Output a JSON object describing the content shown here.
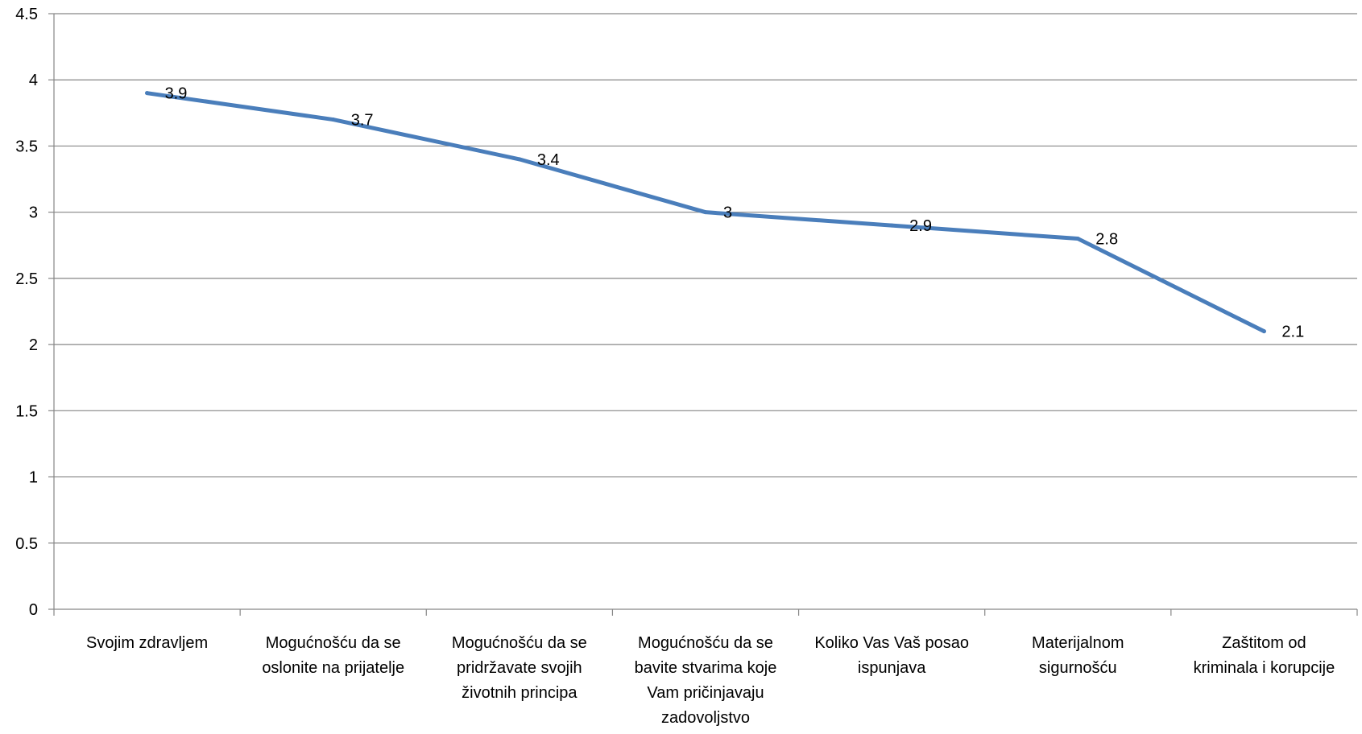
{
  "chart_data": {
    "type": "line",
    "title": "",
    "xlabel": "",
    "ylabel": "",
    "categories": [
      [
        "Svojim  zdravljem"
      ],
      [
        "Mogućnošću da se",
        "oslonite na prijatelje"
      ],
      [
        "Mogućnošću da se",
        "pridržavate svojih",
        "životnih principa"
      ],
      [
        "Mogućnošću da se",
        "bavite stvarima koje",
        "Vam pričinjavaju",
        "zadovoljstvo"
      ],
      [
        "Koliko Vas Vaš posao",
        "ispunjava"
      ],
      [
        "Materijalnom",
        "sigurnošću"
      ],
      [
        "Zaštitom od",
        "kriminala i korupcije"
      ]
    ],
    "series": [
      {
        "values": [
          3.9,
          3.7,
          3.4,
          3.0,
          2.9,
          2.8,
          2.1
        ],
        "data_labels": [
          "3.9",
          "3.7",
          "3.4",
          "3",
          "2.9",
          "2.8",
          "2.1"
        ],
        "color": "#4a7ebb"
      }
    ],
    "ylim": [
      0,
      4.5
    ],
    "yticks": [
      "0",
      "0.5",
      "1",
      "1.5",
      "2",
      "2.5",
      "3",
      "3.5",
      "4",
      "4.5"
    ],
    "grid": true,
    "legend": "none",
    "gridline_color": "#868686",
    "axis_color": "#868686"
  }
}
